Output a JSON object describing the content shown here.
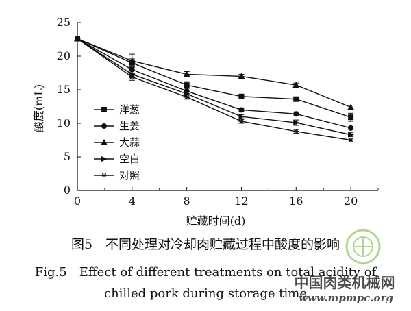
{
  "chart_data": {
    "type": "line",
    "title": "",
    "xlabel": "贮藏时间(d)",
    "ylabel": "酸度(mL)",
    "x": [
      0,
      4,
      8,
      12,
      16,
      20
    ],
    "xticks": [
      "0",
      "4",
      "8",
      "12",
      "16",
      "20"
    ],
    "yticks": [
      "0",
      "5",
      "10",
      "15",
      "20",
      "25"
    ],
    "xlim": [
      0,
      22
    ],
    "ylim": [
      0,
      25
    ],
    "grid": false,
    "legend_position": "center-left",
    "series": [
      {
        "name": "洋葱",
        "marker": "square",
        "values": [
          22.6,
          19.0,
          15.7,
          14.0,
          13.6,
          10.9
        ],
        "errors": [
          0.3,
          0.6,
          0.5,
          0.2,
          0.2,
          0.6
        ]
      },
      {
        "name": "生姜",
        "marker": "circle",
        "values": [
          22.6,
          18.0,
          14.8,
          12.0,
          11.4,
          9.3
        ],
        "errors": [
          0.3,
          0.5,
          0.4,
          0.2,
          0.3,
          0.2
        ]
      },
      {
        "name": "大蒜",
        "marker": "triangle",
        "values": [
          22.6,
          19.3,
          17.3,
          17.0,
          15.7,
          12.4
        ],
        "errors": [
          0.3,
          1.0,
          0.4,
          0.3,
          0.3,
          0.3
        ]
      },
      {
        "name": "空白",
        "marker": "arrow",
        "values": [
          22.6,
          17.3,
          14.4,
          11.0,
          10.1,
          8.3
        ],
        "errors": [
          0.3,
          0.5,
          0.4,
          0.3,
          0.4,
          0.3
        ]
      },
      {
        "name": "对照",
        "marker": "star",
        "values": [
          22.6,
          16.9,
          13.9,
          10.3,
          8.8,
          7.5
        ],
        "errors": [
          0.3,
          0.5,
          0.3,
          0.3,
          0.3,
          0.3
        ]
      }
    ]
  },
  "caption": {
    "zh": "图5　不同处理对冷却肉贮藏过程中酸度的影响",
    "en_line1": "Fig.5　Effect of different treatments on total acidity of",
    "en_line2": "chilled pork during storage time"
  },
  "watermark": {
    "text": "中国肉类机械网",
    "url": "www.mpmpc.org",
    "color": "#6cb83a"
  }
}
